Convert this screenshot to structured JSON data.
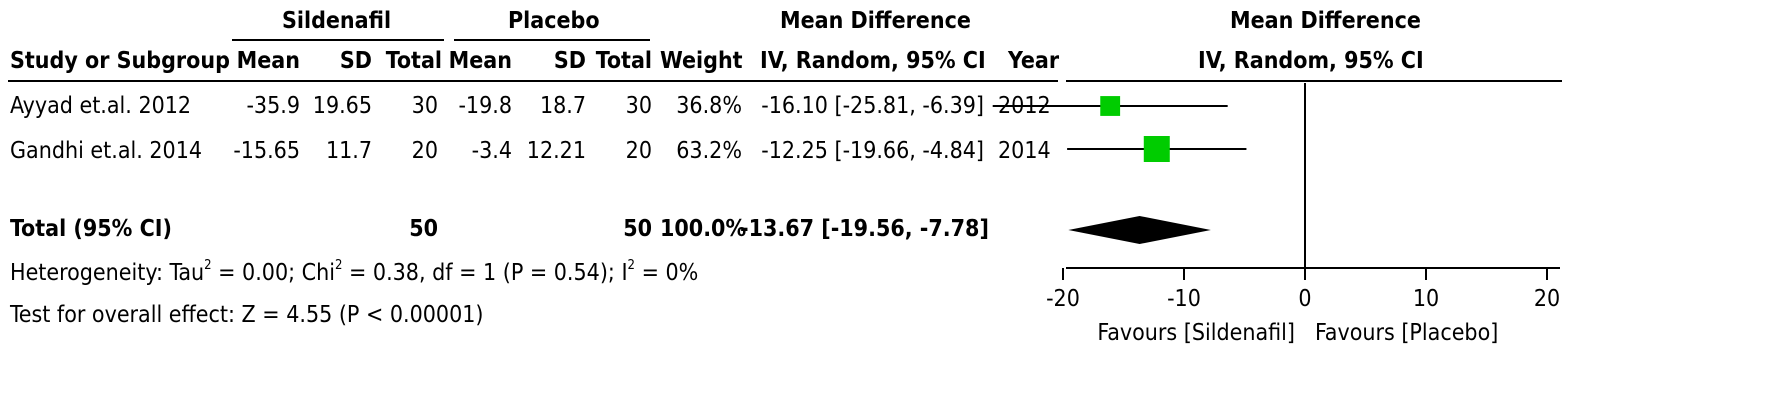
{
  "headers": {
    "group1": "Sildenafil",
    "group2": "Placebo",
    "effect_group": "Mean Difference",
    "plot_group": "Mean Difference",
    "study": "Study or Subgroup",
    "mean1": "Mean",
    "sd1": "SD",
    "total1": "Total",
    "mean2": "Mean",
    "sd2": "SD",
    "total2": "Total",
    "weight": "Weight",
    "effect": "IV, Random, 95% CI",
    "year": "Year",
    "plot": "IV, Random, 95% CI"
  },
  "studies": [
    {
      "name": "Ayyad et.al. 2012",
      "mean1": "-35.9",
      "sd1": "19.65",
      "total1": "30",
      "mean2": "-19.8",
      "sd2": "18.7",
      "total2": "30",
      "weight": "36.8%",
      "ci": "-16.10 [-25.81, -6.39]",
      "year": "2012"
    },
    {
      "name": "Gandhi et.al. 2014",
      "mean1": "-15.65",
      "sd1": "11.7",
      "total1": "20",
      "mean2": "-3.4",
      "sd2": "12.21",
      "total2": "20",
      "weight": "63.2%",
      "ci": "-12.25 [-19.66, -4.84]",
      "year": "2014"
    }
  ],
  "total": {
    "label": "Total (95% CI)",
    "total1": "50",
    "total2": "50",
    "weight": "100.0%",
    "ci": "-13.67 [-19.56, -7.78]"
  },
  "heterogeneity": {
    "prefix": "Heterogeneity: Tau",
    "tau_sup": "2",
    "mid": " = 0.00; Chi",
    "chi_sup": "2",
    "rest": " = 0.38, df = 1 (P = 0.54); I",
    "i_sup": "2",
    "end": " = 0%"
  },
  "overall_effect": "Test for overall effect: Z = 4.55 (P < 0.00001)",
  "chart_data": {
    "type": "forest",
    "x_ticks": [
      -20,
      -10,
      0,
      10,
      20
    ],
    "x_tick_labels": [
      "-20",
      "-10",
      "0",
      "10",
      "20"
    ],
    "xlim": [
      -25.9,
      24.2
    ],
    "studies": [
      {
        "name": "Ayyad et.al. 2012",
        "estimate": -16.1,
        "ci_low": -25.81,
        "ci_high": -6.39,
        "weight": 36.8
      },
      {
        "name": "Gandhi et.al. 2014",
        "estimate": -12.25,
        "ci_low": -19.66,
        "ci_high": -4.84,
        "weight": 63.2
      }
    ],
    "pooled": {
      "estimate": -13.67,
      "ci_low": -19.56,
      "ci_high": -7.78
    },
    "favours_left": "Favours [Sildenafil]",
    "favours_right": "Favours [Placebo]",
    "marker_color": "#00cc00"
  }
}
